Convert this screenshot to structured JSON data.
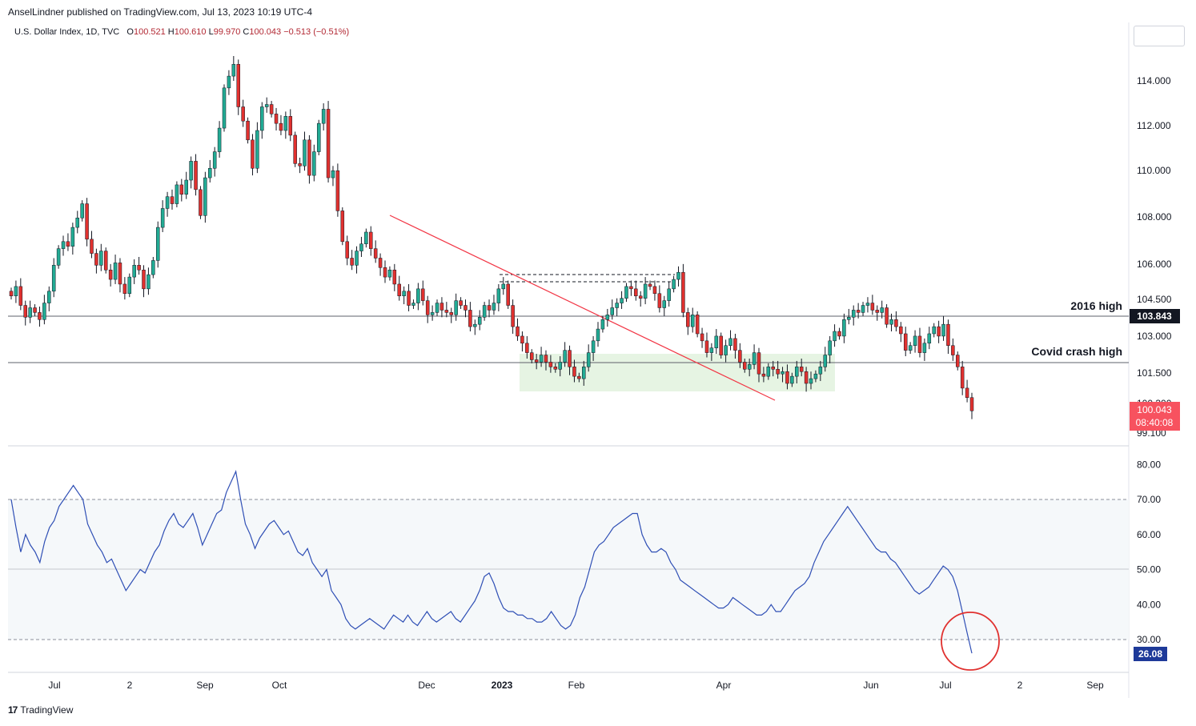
{
  "header": {
    "publisher": "AnselLindner published on TradingView.com, Jul 13, 2023 10:19 UTC-4",
    "symbol": "U.S. Dollar Index, 1D, TVC",
    "open_label": "O",
    "open_value": "100.521",
    "high_label": "H",
    "high_value": "100.610",
    "low_label": "L",
    "low_value": "99.970",
    "close_label": "C",
    "close_value": "100.043",
    "change_value": "−0.513 (−0.51%)"
  },
  "branding": {
    "logo_icon": "tradingview-logo-icon",
    "name": "TradingView"
  },
  "colors": {
    "up": "#22ab94",
    "down": "#e0312f",
    "rsi_line": "#2f4fb5",
    "trendline": "#f23645",
    "zone_fill": "#e6f4e3",
    "circle": "#e0312f",
    "price_badge": "#f7525f",
    "level_badge": "#131722",
    "rsi_badge": "#1e3a99"
  },
  "chart_data": [
    {
      "type": "candlestick",
      "title": "U.S. Dollar Index, 1D, TVC",
      "ylim": [
        99.1,
        116.0
      ],
      "y_ticks": [
        "114.000",
        "112.000",
        "110.000",
        "108.000",
        "106.000",
        "104.500",
        "103.000",
        "101.500",
        "100.300",
        "99.100"
      ],
      "x_ticks": [
        "Jul",
        "2",
        "Sep",
        "Oct",
        "Dec",
        "2023",
        "Feb",
        "Apr",
        "Jun",
        "Jul",
        "2",
        "Sep"
      ],
      "series_path_close": [
        104.9,
        105.3,
        104.5,
        104.0,
        104.4,
        104.2,
        103.9,
        104.6,
        105.1,
        106.2,
        106.9,
        107.2,
        107.0,
        107.8,
        108.2,
        108.8,
        107.3,
        106.7,
        106.2,
        106.8,
        106.0,
        105.6,
        106.3,
        105.4,
        105.0,
        105.7,
        106.2,
        106.0,
        105.2,
        105.8,
        106.4,
        107.8,
        108.6,
        109.1,
        108.8,
        109.6,
        109.2,
        109.8,
        110.6,
        109.4,
        108.3,
        109.9,
        110.3,
        111.0,
        112.0,
        113.7,
        114.2,
        114.7,
        112.9,
        112.3,
        111.5,
        110.3,
        111.9,
        112.9,
        113.0,
        112.6,
        112.2,
        111.9,
        112.5,
        111.7,
        110.5,
        110.4,
        111.5,
        110.0,
        111.0,
        112.2,
        112.8,
        109.9,
        110.2,
        108.5,
        107.2,
        106.5,
        106.2,
        106.8,
        107.1,
        107.6,
        106.9,
        106.5,
        106.1,
        105.7,
        106.0,
        105.4,
        104.9,
        105.1,
        104.5,
        104.6,
        105.2,
        104.7,
        104.1,
        104.2,
        104.6,
        104.3,
        104.2,
        104.1,
        104.7,
        104.5,
        104.3,
        103.6,
        103.7,
        104.0,
        104.5,
        104.3,
        104.6,
        105.2,
        105.4,
        104.5,
        103.6,
        103.2,
        102.9,
        102.5,
        102.2,
        102.1,
        102.4,
        102.1,
        101.9,
        101.8,
        102.1,
        102.6,
        101.9,
        101.5,
        101.4,
        101.9,
        102.5,
        103.0,
        103.5,
        103.9,
        104.1,
        104.4,
        104.6,
        104.8,
        105.3,
        105.2,
        104.9,
        104.8,
        105.4,
        105.3,
        105.0,
        104.4,
        104.7,
        105.2,
        105.6,
        105.9,
        104.2,
        103.6,
        104.1,
        103.3,
        103.0,
        102.5,
        102.7,
        103.2,
        102.4,
        102.8,
        103.1,
        102.6,
        102.1,
        101.8,
        102.0,
        102.5,
        101.6,
        101.5,
        101.9,
        101.8,
        101.6,
        101.7,
        101.2,
        101.5,
        101.9,
        101.7,
        101.2,
        101.4,
        101.6,
        101.9,
        102.4,
        103.0,
        103.4,
        103.2,
        103.9,
        104.0,
        104.3,
        104.2,
        104.5,
        104.6,
        104.3,
        104.2,
        104.4,
        103.7,
        103.9,
        103.6,
        103.3,
        102.6,
        102.8,
        103.2,
        102.5,
        102.9,
        103.3,
        103.6,
        103.2,
        103.7,
        102.8,
        102.4,
        101.9,
        101.0,
        100.6,
        100.04
      ]
    },
    {
      "type": "line",
      "title": "RSI",
      "ylim": [
        20.0,
        86.0
      ],
      "y_ticks": [
        "80.00",
        "70.00",
        "60.00",
        "50.00",
        "40.00",
        "30.00"
      ],
      "bands": [
        30,
        50,
        70
      ],
      "last_value": 26.08,
      "values": [
        70,
        62,
        55,
        60,
        57,
        55,
        52,
        58,
        62,
        64,
        68,
        70,
        72,
        74,
        72,
        70,
        63,
        60,
        57,
        55,
        52,
        53,
        50,
        47,
        44,
        46,
        48,
        50,
        49,
        52,
        55,
        57,
        61,
        64,
        66,
        63,
        62,
        64,
        66,
        62,
        57,
        60,
        63,
        66,
        67,
        72,
        75,
        78,
        70,
        63,
        60,
        56,
        59,
        61,
        63,
        64,
        62,
        60,
        61,
        58,
        55,
        54,
        56,
        52,
        50,
        48,
        50,
        44,
        42,
        40,
        36,
        34,
        33,
        34,
        35,
        36,
        35,
        34,
        33,
        35,
        37,
        36,
        35,
        37,
        35,
        34,
        36,
        38,
        36,
        35,
        36,
        37,
        38,
        36,
        35,
        37,
        39,
        41,
        44,
        48,
        49,
        46,
        42,
        39,
        38,
        38,
        37,
        37,
        36,
        36,
        35,
        35,
        36,
        38,
        36,
        34,
        33,
        34,
        37,
        42,
        45,
        50,
        55,
        57,
        58,
        60,
        62,
        63,
        64,
        65,
        66,
        66,
        60,
        57,
        55,
        55,
        56,
        55,
        52,
        50,
        47,
        46,
        45,
        44,
        43,
        42,
        41,
        40,
        39,
        39,
        40,
        42,
        41,
        40,
        39,
        38,
        37,
        37,
        38,
        40,
        38,
        38,
        40,
        42,
        44,
        45,
        46,
        48,
        52,
        55,
        58,
        60,
        62,
        64,
        66,
        68,
        66,
        64,
        62,
        60,
        58,
        56,
        55,
        55,
        53,
        52,
        50,
        48,
        46,
        44,
        43,
        44,
        45,
        47,
        49,
        51,
        50,
        48,
        44,
        38,
        32,
        26.08
      ]
    }
  ],
  "annotations": {
    "level_2016_label": "2016 high",
    "level_2016_value": "103.843",
    "level_covid_label": "Covid crash high",
    "level_covid_value": 101.95,
    "last_price": "100.043",
    "countdown": "08:40:08",
    "rsi_last": "26.08"
  }
}
